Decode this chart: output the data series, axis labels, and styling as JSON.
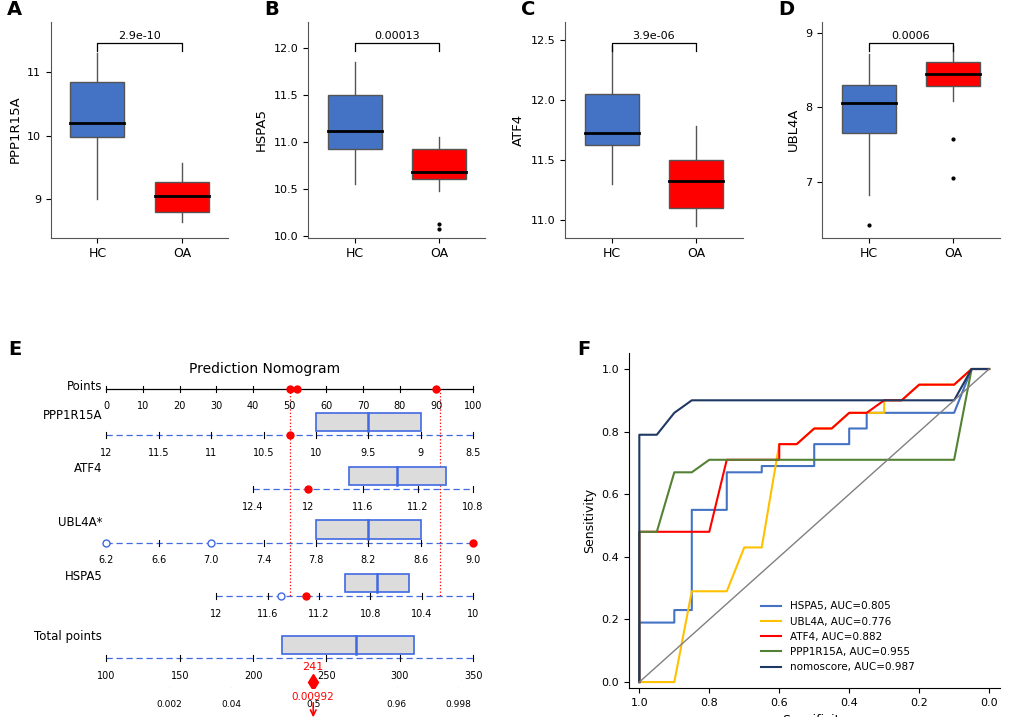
{
  "box_A": {
    "label": "PPP1R15A",
    "pval": "2.9e-10",
    "HC": {
      "median": 10.2,
      "q1": 9.98,
      "q3": 10.85,
      "whislo": 9.0,
      "whishi": 11.3,
      "fliers": []
    },
    "OA": {
      "median": 9.05,
      "q1": 8.8,
      "q3": 9.28,
      "whislo": 8.65,
      "whishi": 9.58,
      "fliers": []
    },
    "ylim": [
      8.4,
      11.8
    ],
    "yticks": [
      9.0,
      10.0,
      11.0
    ]
  },
  "box_B": {
    "label": "HSPA5",
    "pval": "0.00013",
    "HC": {
      "median": 11.12,
      "q1": 10.92,
      "q3": 11.5,
      "whislo": 10.55,
      "whishi": 11.85,
      "fliers": []
    },
    "OA": {
      "median": 10.68,
      "q1": 10.6,
      "q3": 10.92,
      "whislo": 10.48,
      "whishi": 11.05,
      "fliers": [
        10.12,
        10.07
      ]
    },
    "ylim": [
      9.98,
      12.28
    ],
    "yticks": [
      10.0,
      10.5,
      11.0,
      11.5,
      12.0
    ]
  },
  "box_C": {
    "label": "ATF4",
    "pval": "3.9e-06",
    "HC": {
      "median": 11.72,
      "q1": 11.62,
      "q3": 12.05,
      "whislo": 11.3,
      "whishi": 12.45,
      "fliers": []
    },
    "OA": {
      "median": 11.32,
      "q1": 11.1,
      "q3": 11.5,
      "whislo": 10.95,
      "whishi": 11.78,
      "fliers": []
    },
    "ylim": [
      10.85,
      12.65
    ],
    "yticks": [
      11.0,
      11.5,
      12.0,
      12.5
    ]
  },
  "box_D": {
    "label": "UBL4A",
    "pval": "0.0006",
    "HC": {
      "median": 8.05,
      "q1": 7.65,
      "q3": 8.3,
      "whislo": 6.82,
      "whishi": 8.72,
      "fliers": [
        6.42
      ]
    },
    "OA": {
      "median": 8.45,
      "q1": 8.28,
      "q3": 8.6,
      "whislo": 8.08,
      "whishi": 8.82,
      "fliers": [
        7.58,
        7.05
      ]
    },
    "ylim": [
      6.25,
      9.15
    ],
    "yticks": [
      7.0,
      8.0,
      9.0
    ]
  },
  "hc_color": "#4472C4",
  "oa_color": "#FF0000",
  "roc_curves": {
    "HSPA5": {
      "auc": 0.805,
      "color": "#4472C4",
      "specificity": [
        1.0,
        1.0,
        0.95,
        0.9,
        0.9,
        0.85,
        0.85,
        0.8,
        0.75,
        0.75,
        0.7,
        0.65,
        0.65,
        0.6,
        0.55,
        0.5,
        0.5,
        0.45,
        0.4,
        0.4,
        0.35,
        0.35,
        0.3,
        0.25,
        0.2,
        0.15,
        0.1,
        0.05,
        0.0
      ],
      "sensitivity": [
        0.0,
        0.19,
        0.19,
        0.19,
        0.23,
        0.23,
        0.55,
        0.55,
        0.55,
        0.67,
        0.67,
        0.67,
        0.69,
        0.69,
        0.69,
        0.69,
        0.76,
        0.76,
        0.76,
        0.81,
        0.81,
        0.86,
        0.86,
        0.86,
        0.86,
        0.86,
        0.86,
        1.0,
        1.0
      ]
    },
    "UBL4A": {
      "auc": 0.776,
      "color": "#FFC000",
      "specificity": [
        1.0,
        1.0,
        0.95,
        0.9,
        0.85,
        0.8,
        0.75,
        0.7,
        0.65,
        0.6,
        0.55,
        0.5,
        0.45,
        0.4,
        0.35,
        0.3,
        0.3,
        0.25,
        0.2,
        0.15,
        0.1,
        0.05,
        0.0
      ],
      "sensitivity": [
        0.0,
        0.0,
        0.0,
        0.0,
        0.29,
        0.29,
        0.29,
        0.43,
        0.43,
        0.76,
        0.76,
        0.81,
        0.81,
        0.86,
        0.86,
        0.86,
        0.9,
        0.9,
        0.95,
        0.95,
        0.95,
        1.0,
        1.0
      ]
    },
    "ATF4": {
      "auc": 0.882,
      "color": "#FF0000",
      "specificity": [
        1.0,
        1.0,
        0.95,
        0.9,
        0.85,
        0.8,
        0.75,
        0.7,
        0.65,
        0.6,
        0.6,
        0.55,
        0.5,
        0.45,
        0.4,
        0.35,
        0.3,
        0.25,
        0.2,
        0.15,
        0.1,
        0.05,
        0.0
      ],
      "sensitivity": [
        0.0,
        0.48,
        0.48,
        0.48,
        0.48,
        0.48,
        0.71,
        0.71,
        0.71,
        0.71,
        0.76,
        0.76,
        0.81,
        0.81,
        0.86,
        0.86,
        0.9,
        0.9,
        0.95,
        0.95,
        0.95,
        1.0,
        1.0
      ]
    },
    "PPP1R15A": {
      "auc": 0.955,
      "color": "#548235",
      "specificity": [
        1.0,
        1.0,
        0.95,
        0.9,
        0.85,
        0.8,
        0.75,
        0.7,
        0.65,
        0.6,
        0.55,
        0.5,
        0.45,
        0.4,
        0.35,
        0.3,
        0.25,
        0.2,
        0.15,
        0.1,
        0.05,
        0.0
      ],
      "sensitivity": [
        0.0,
        0.48,
        0.48,
        0.67,
        0.67,
        0.71,
        0.71,
        0.71,
        0.71,
        0.71,
        0.71,
        0.71,
        0.71,
        0.71,
        0.71,
        0.71,
        0.71,
        0.71,
        0.71,
        0.71,
        1.0,
        1.0
      ]
    },
    "nomoscore": {
      "auc": 0.987,
      "color": "#1F3864",
      "specificity": [
        1.0,
        1.0,
        0.95,
        0.9,
        0.85,
        0.8,
        0.75,
        0.7,
        0.65,
        0.6,
        0.55,
        0.5,
        0.45,
        0.4,
        0.35,
        0.3,
        0.25,
        0.2,
        0.15,
        0.1,
        0.05,
        0.0
      ],
      "sensitivity": [
        0.0,
        0.79,
        0.79,
        0.86,
        0.9,
        0.9,
        0.9,
        0.9,
        0.9,
        0.9,
        0.9,
        0.9,
        0.9,
        0.9,
        0.9,
        0.9,
        0.9,
        0.9,
        0.9,
        0.9,
        1.0,
        1.0
      ]
    }
  },
  "background_color": "#FFFFFF"
}
